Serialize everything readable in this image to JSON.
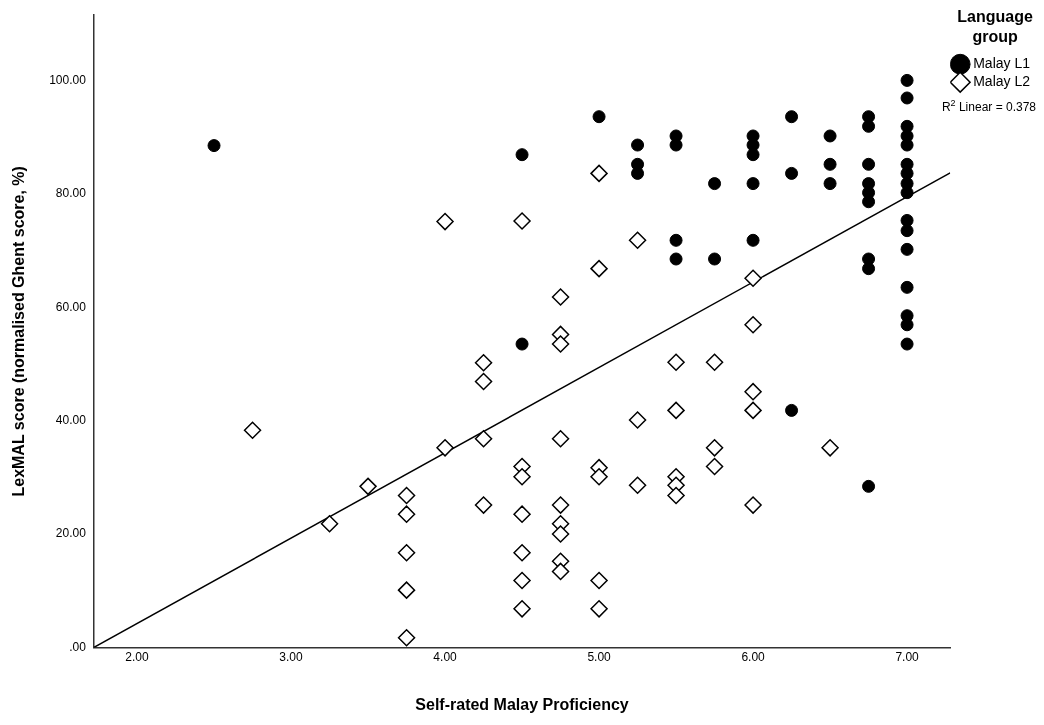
{
  "chart_data": {
    "type": "scatter",
    "xlabel": "Self-rated Malay Proficiency",
    "ylabel": "LexMAL score (normalised Ghent score, %)",
    "legend_title": "Language group",
    "legend": "top right",
    "grid": false,
    "xlim": [
      1.72,
      7.28
    ],
    "xticks": [
      {
        "value": 2,
        "label": "2.00"
      },
      {
        "value": 3,
        "label": "3.00"
      },
      {
        "value": 4,
        "label": "4.00"
      },
      {
        "value": 5,
        "label": "5.00"
      },
      {
        "value": 6,
        "label": "6.00"
      },
      {
        "value": 7,
        "label": "7.00"
      }
    ],
    "ylim": [
      0,
      111.5
    ],
    "yticks": [
      {
        "value": 0,
        "label": ".00"
      },
      {
        "value": 20,
        "label": "20.00"
      },
      {
        "value": 40,
        "label": "40.00"
      },
      {
        "value": 60,
        "label": "60.00"
      },
      {
        "value": 80,
        "label": "80.00"
      },
      {
        "value": 100,
        "label": "100.00"
      }
    ],
    "annotations": [
      "R$^{2}$ Linear = 0.378"
    ],
    "series": [
      {
        "name": "Malay L1",
        "color": "#000000",
        "marker": "circle",
        "x": [
          2.5,
          4.5,
          4.5,
          5,
          5.25,
          5.25,
          5.25,
          5.5,
          5.5,
          5.5,
          5.5,
          5.75,
          5.75,
          6,
          6,
          6,
          6,
          6,
          6.25,
          6.25,
          6.25,
          6.5,
          6.5,
          6.5,
          6.75,
          6.75,
          6.75,
          6.75,
          6.75,
          6.75,
          6.75,
          6.75,
          6.75,
          7,
          7,
          7,
          7,
          7,
          7,
          7,
          7,
          7,
          7,
          7,
          7,
          7,
          7,
          7,
          7
        ],
        "values": [
          88.5,
          86.9,
          53.5,
          93.6,
          88.6,
          85.2,
          83.6,
          90.2,
          88.6,
          71.8,
          68.5,
          81.8,
          68.5,
          90.2,
          88.6,
          86.9,
          81.8,
          71.8,
          93.6,
          83.6,
          41.8,
          90.2,
          85.2,
          81.8,
          93.6,
          91.9,
          85.2,
          81.8,
          80.2,
          78.6,
          68.5,
          66.8,
          28.4,
          100,
          96.9,
          91.9,
          90.2,
          88.6,
          85.2,
          83.6,
          81.8,
          80.2,
          75.3,
          73.5,
          70.2,
          63.5,
          58.5,
          56.9,
          53.5
        ]
      },
      {
        "name": "Malay L2",
        "color": "#000000",
        "marker": "diamond",
        "x": [
          2.75,
          3.25,
          3.5,
          3.75,
          3.75,
          3.75,
          3.75,
          3.75,
          4,
          4,
          4.25,
          4.25,
          4.25,
          4.25,
          4.5,
          4.5,
          4.5,
          4.5,
          4.5,
          4.5,
          4.5,
          4.75,
          4.75,
          4.75,
          4.75,
          4.75,
          4.75,
          4.75,
          4.75,
          4.75,
          5,
          5,
          5,
          5,
          5,
          5,
          5.25,
          5.25,
          5.25,
          5.5,
          5.5,
          5.5,
          5.5,
          5.5,
          5.75,
          5.75,
          5.75,
          6,
          6,
          6,
          6,
          6,
          6.5
        ],
        "values": [
          38.3,
          21.8,
          28.4,
          26.8,
          23.5,
          16.7,
          10.1,
          1.7,
          75.1,
          35.2,
          50.2,
          46.9,
          36.8,
          25.1,
          75.2,
          31.9,
          30.1,
          23.5,
          16.7,
          11.8,
          6.8,
          61.8,
          55.2,
          53.5,
          36.8,
          25.1,
          21.8,
          20,
          15.2,
          13.4,
          83.6,
          66.8,
          31.7,
          30.1,
          11.8,
          6.8,
          71.8,
          40.1,
          28.6,
          50.3,
          41.8,
          30.1,
          28.6,
          26.8,
          50.3,
          35.2,
          31.9,
          65.1,
          56.9,
          45.1,
          41.8,
          25.1,
          35.2
        ]
      },
      {
        "type": "line",
        "color": "#000000",
        "marker": "none",
        "line_style": "solid",
        "x": [
          1.72,
          7.28
        ],
        "values": [
          0,
          83.7
        ]
      }
    ]
  }
}
